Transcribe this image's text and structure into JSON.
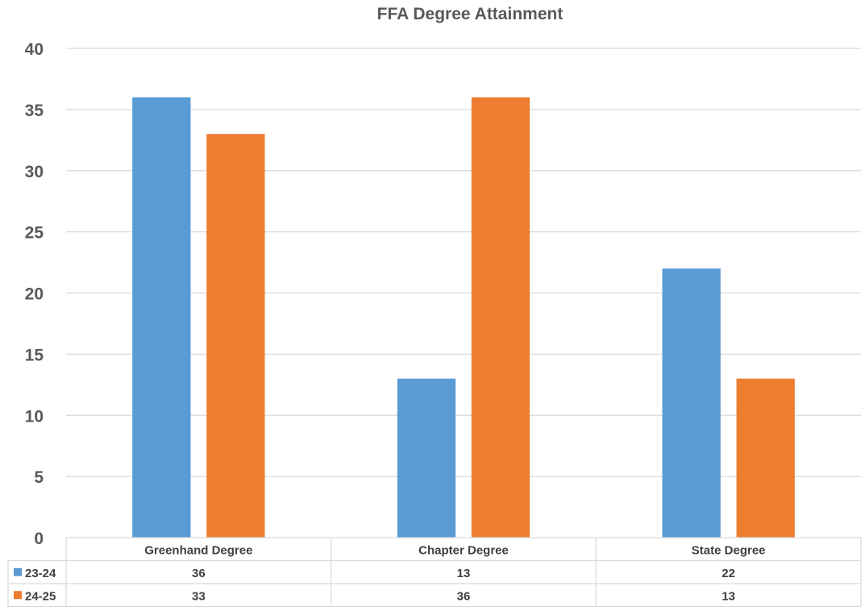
{
  "chart_data": {
    "type": "bar",
    "title": "FFA Degree Attainment",
    "categories": [
      "Greenhand Degree",
      "Chapter Degree",
      "State Degree"
    ],
    "series": [
      {
        "name": "23-24",
        "color": "#5B9BD5",
        "values": [
          36,
          13,
          22
        ]
      },
      {
        "name": "24-25",
        "color": "#ED7D31",
        "values": [
          33,
          36,
          13
        ]
      }
    ],
    "ylim": [
      0,
      40
    ],
    "yticks": [
      0,
      5,
      10,
      15,
      20,
      25,
      30,
      35,
      40
    ],
    "grid": true,
    "legend": "data-table-keys",
    "data_table": true
  }
}
